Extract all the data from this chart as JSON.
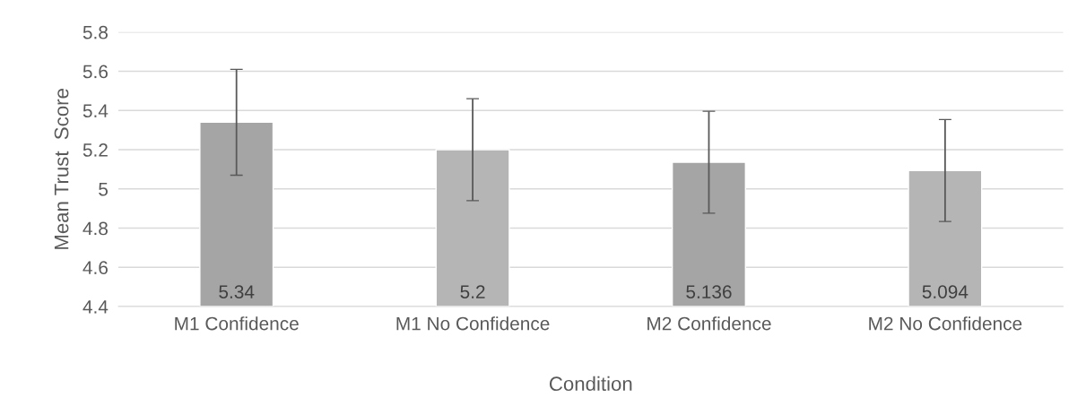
{
  "chart_data": {
    "type": "bar",
    "xlabel": "Condition",
    "ylabel": "Mean Trust  Score",
    "categories": [
      "M1 Confidence",
      "M1 No Confidence",
      "M2 Confidence",
      "M2 No Confidence"
    ],
    "values": [
      5.34,
      5.2,
      5.136,
      5.094
    ],
    "errors": [
      0.27,
      0.26,
      0.26,
      0.26
    ],
    "colors": [
      "#a5a5a5",
      "#b5b5b5",
      "#a5a5a5",
      "#b5b5b5"
    ],
    "ylim": [
      4.4,
      5.8
    ],
    "yticks": [
      4.4,
      4.6,
      4.8,
      {
        "value": 5.0,
        "label": "5"
      },
      5.2,
      5.4,
      5.6,
      5.8
    ],
    "grid": "y",
    "data_labels": true
  }
}
